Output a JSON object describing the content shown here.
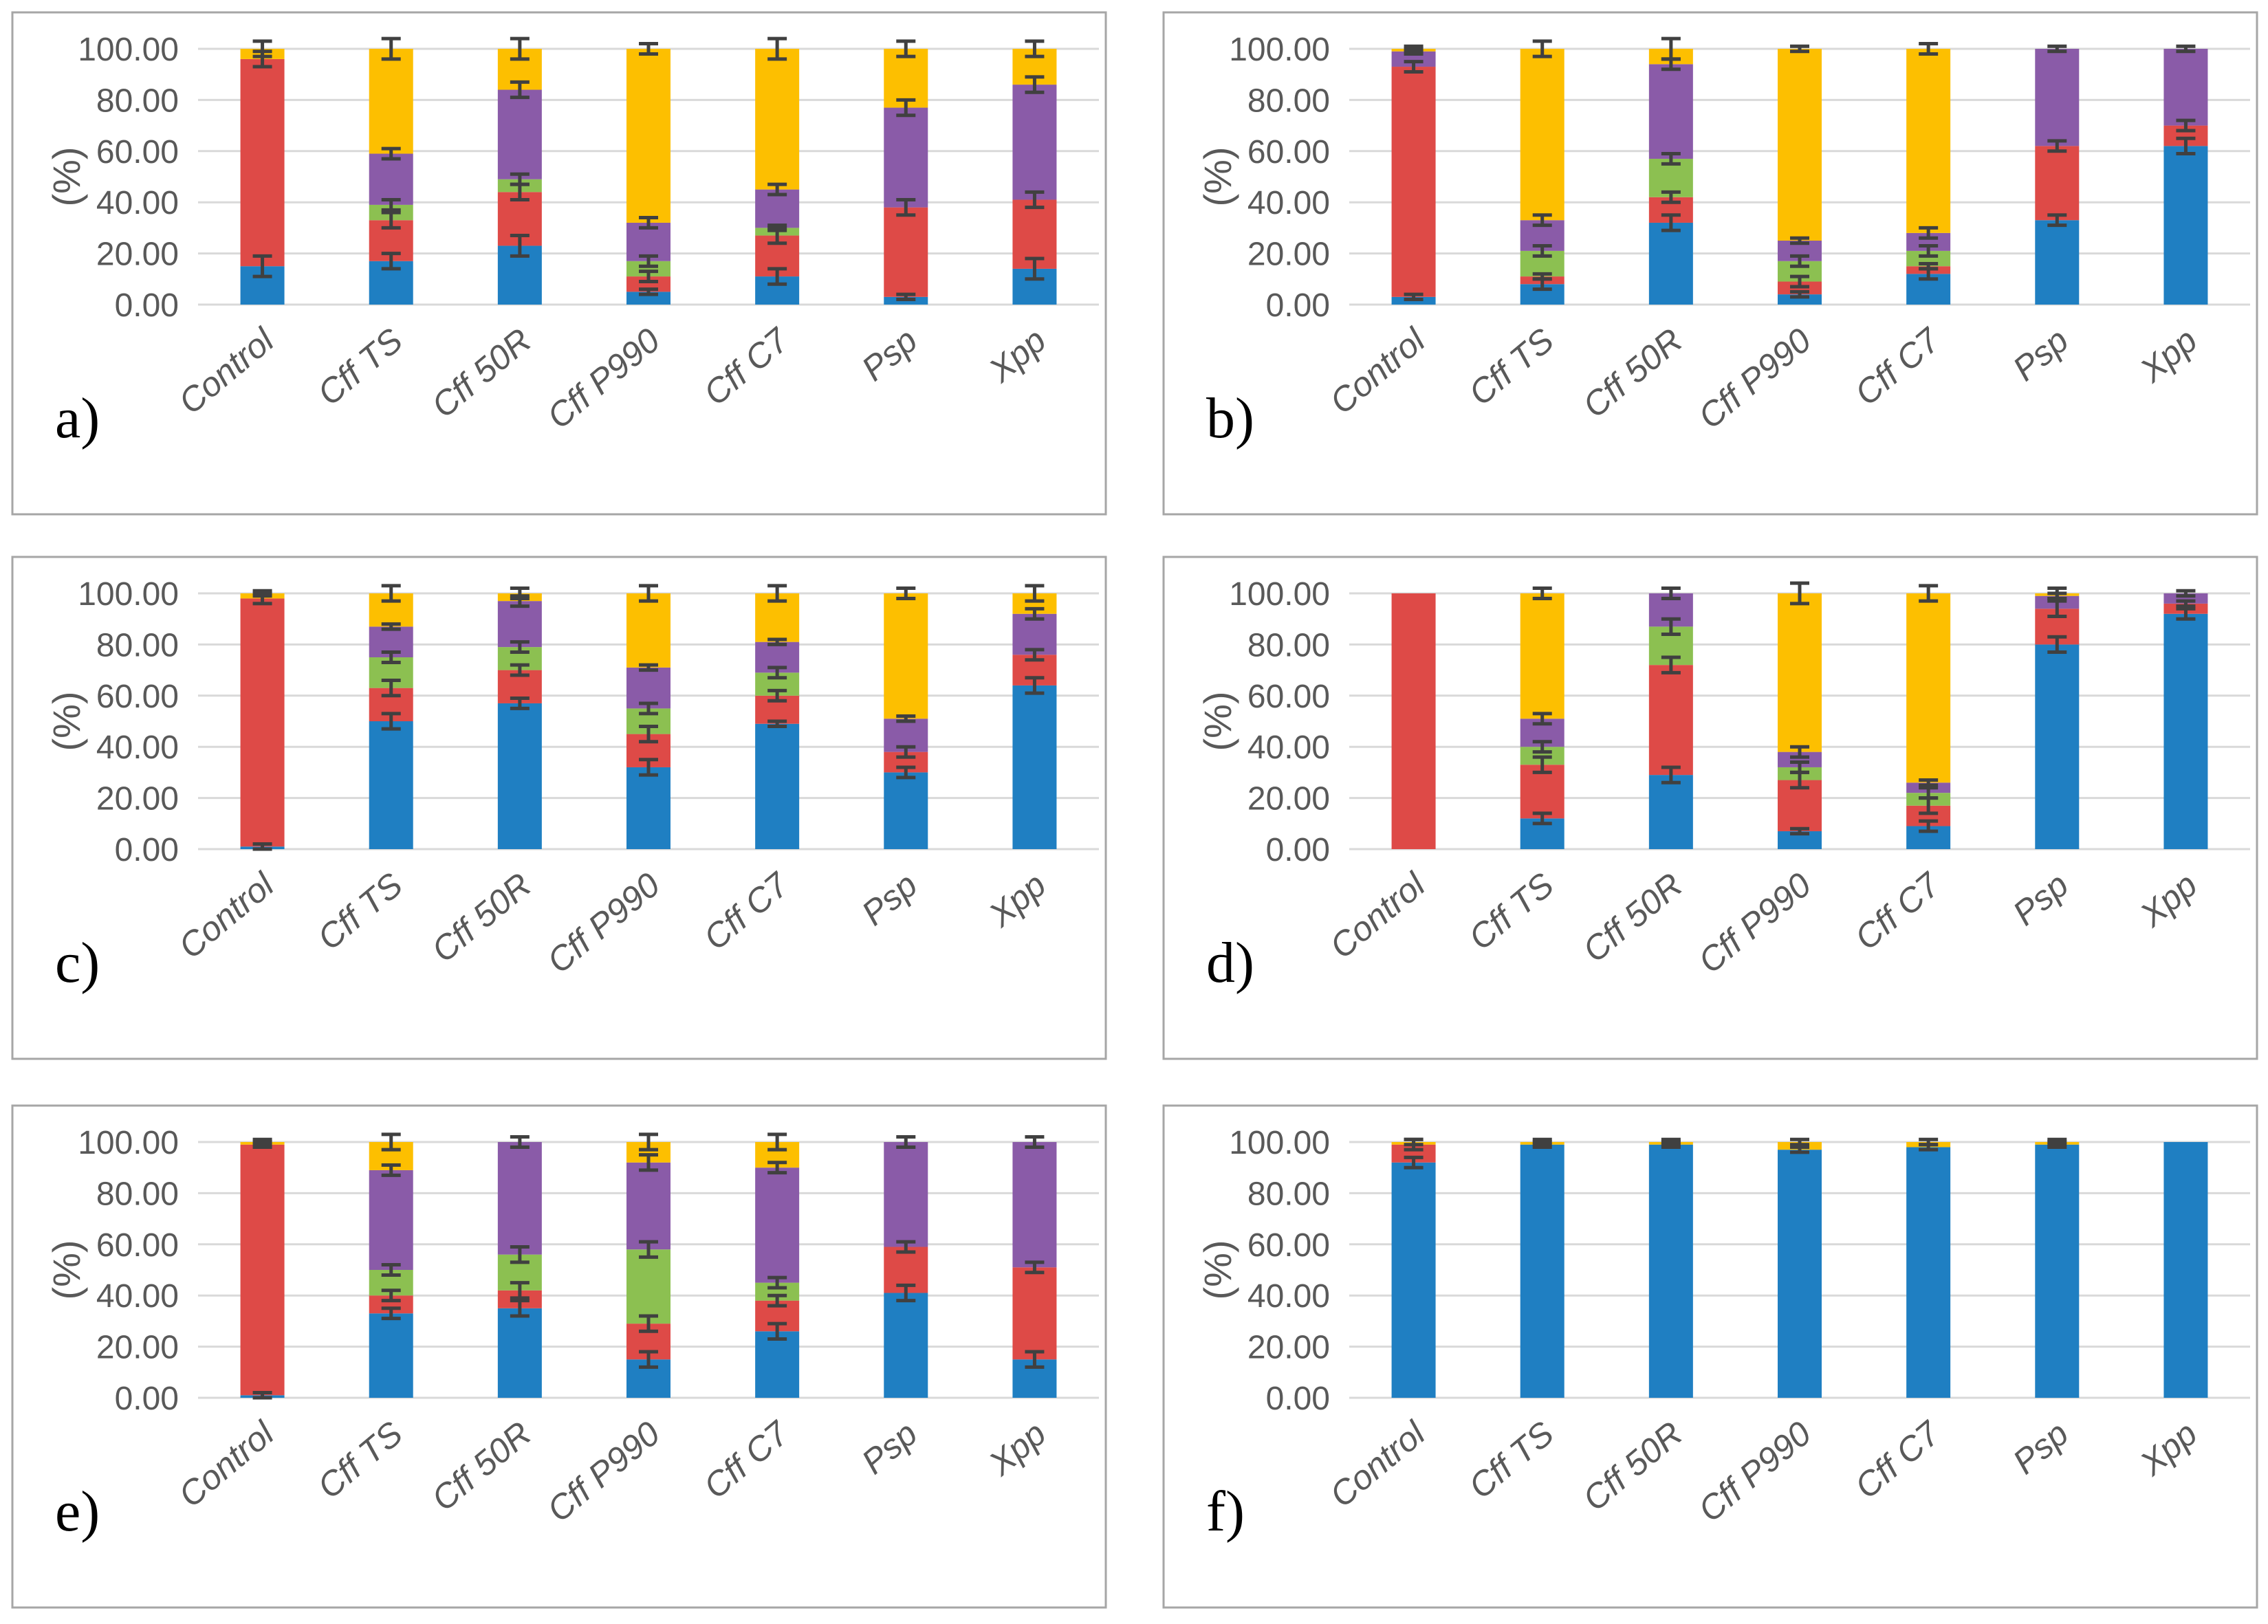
{
  "colors": {
    "blue": "#1f7fc2",
    "red": "#de4a47",
    "green": "#8cc051",
    "purple": "#8a5ba8",
    "yellow": "#fdbf00"
  },
  "y_ticks": [
    "0.00",
    "20.00",
    "40.00",
    "60.00",
    "80.00",
    "100.00"
  ],
  "chart_data": [
    {
      "type": "bar",
      "stacked": true,
      "panel_label": "a)",
      "ylabel": "(%)",
      "ylim": [
        0,
        100
      ],
      "categories": [
        "Control",
        "Cff TS",
        "Cff 50R",
        "Cff P990",
        "Cff C7",
        "Psp",
        "Xpp"
      ],
      "series": [
        {
          "color": "blue",
          "values": [
            15,
            17,
            23,
            5,
            11,
            3,
            14
          ],
          "errors": [
            4,
            3,
            4,
            1,
            3,
            1,
            4
          ]
        },
        {
          "color": "red",
          "values": [
            81,
            16,
            21,
            6,
            16,
            35,
            27
          ],
          "errors": [
            3,
            3,
            3,
            2,
            3,
            3,
            3
          ]
        },
        {
          "color": "green",
          "values": [
            0,
            6,
            5,
            6,
            3,
            0,
            0
          ],
          "errors": [
            0,
            2,
            2,
            2,
            1,
            0,
            0
          ]
        },
        {
          "color": "purple",
          "values": [
            0,
            20,
            35,
            15,
            15,
            39,
            45
          ],
          "errors": [
            0,
            2,
            3,
            2,
            2,
            3,
            3
          ]
        },
        {
          "color": "yellow",
          "values": [
            4,
            41,
            16,
            68,
            55,
            23,
            14
          ],
          "errors": [
            3,
            4,
            4,
            2,
            4,
            3,
            3
          ]
        }
      ]
    },
    {
      "type": "bar",
      "stacked": true,
      "panel_label": "b)",
      "ylabel": "(%)",
      "ylim": [
        0,
        100
      ],
      "categories": [
        "Control",
        "Cff TS",
        "Cff 50R",
        "Cff P990",
        "Cff C7",
        "Psp",
        "Xpp"
      ],
      "series": [
        {
          "color": "blue",
          "values": [
            3,
            8,
            32,
            4,
            12,
            33,
            62
          ],
          "errors": [
            1,
            2,
            3,
            1,
            2,
            2,
            3
          ]
        },
        {
          "color": "red",
          "values": [
            90,
            3,
            10,
            5,
            3,
            29,
            8
          ],
          "errors": [
            2,
            1,
            2,
            2,
            1,
            2,
            2
          ]
        },
        {
          "color": "green",
          "values": [
            0,
            10,
            15,
            8,
            6,
            0,
            0
          ],
          "errors": [
            0,
            2,
            2,
            2,
            2,
            0,
            0
          ]
        },
        {
          "color": "purple",
          "values": [
            6,
            12,
            37,
            8,
            7,
            38,
            30
          ],
          "errors": [
            1,
            2,
            2,
            1,
            2,
            1,
            1
          ]
        },
        {
          "color": "yellow",
          "values": [
            1,
            67,
            6,
            75,
            72,
            0,
            0
          ],
          "errors": [
            1,
            3,
            4,
            1,
            2,
            0,
            2
          ]
        }
      ]
    },
    {
      "type": "bar",
      "stacked": true,
      "panel_label": "c)",
      "ylabel": "(%)",
      "ylim": [
        0,
        100
      ],
      "categories": [
        "Control",
        "Cff TS",
        "Cff 50R",
        "Cff P990",
        "Cff C7",
        "Psp",
        "Xpp"
      ],
      "series": [
        {
          "color": "blue",
          "values": [
            1,
            50,
            57,
            32,
            49,
            30,
            64
          ],
          "errors": [
            1,
            3,
            2,
            3,
            1,
            2,
            3
          ]
        },
        {
          "color": "red",
          "values": [
            97,
            13,
            13,
            13,
            11,
            8,
            12
          ],
          "errors": [
            2,
            3,
            2,
            3,
            2,
            2,
            2
          ]
        },
        {
          "color": "green",
          "values": [
            0,
            12,
            9,
            10,
            9,
            0,
            0
          ],
          "errors": [
            0,
            2,
            2,
            2,
            2,
            0,
            0
          ]
        },
        {
          "color": "purple",
          "values": [
            0,
            12,
            18,
            16,
            12,
            13,
            16
          ],
          "errors": [
            0,
            1,
            2,
            1,
            1,
            1,
            2
          ]
        },
        {
          "color": "yellow",
          "values": [
            2,
            13,
            3,
            29,
            19,
            49,
            8
          ],
          "errors": [
            1,
            3,
            2,
            3,
            3,
            2,
            3
          ]
        }
      ]
    },
    {
      "type": "bar",
      "stacked": true,
      "panel_label": "d)",
      "ylabel": "(%)",
      "ylim": [
        0,
        100
      ],
      "categories": [
        "Control",
        "Cff TS",
        "Cff 50R",
        "Cff P990",
        "Cff C7",
        "Psp",
        "Xpp"
      ],
      "series": [
        {
          "color": "blue",
          "values": [
            0,
            12,
            29,
            7,
            9,
            80,
            92
          ],
          "errors": [
            1,
            2,
            3,
            1,
            2,
            3,
            2
          ]
        },
        {
          "color": "red",
          "values": [
            100,
            21,
            43,
            20,
            8,
            14,
            4
          ],
          "errors": [
            0,
            3,
            3,
            3,
            3,
            3,
            1
          ]
        },
        {
          "color": "green",
          "values": [
            0,
            7,
            15,
            5,
            5,
            0,
            0
          ],
          "errors": [
            0,
            2,
            3,
            2,
            2,
            0,
            0
          ]
        },
        {
          "color": "purple",
          "values": [
            0,
            11,
            13,
            6,
            4,
            5,
            4
          ],
          "errors": [
            0,
            2,
            2,
            2,
            1,
            1,
            1
          ]
        },
        {
          "color": "yellow",
          "values": [
            0,
            49,
            0,
            62,
            74,
            1,
            0
          ],
          "errors": [
            0,
            2,
            3,
            4,
            3,
            2,
            2
          ]
        }
      ]
    },
    {
      "type": "bar",
      "stacked": true,
      "panel_label": "e)",
      "ylabel": "(%)",
      "ylim": [
        0,
        100
      ],
      "categories": [
        "Control",
        "Cff TS",
        "Cff 50R",
        "Cff P990",
        "Cff C7",
        "Psp",
        "Xpp"
      ],
      "series": [
        {
          "color": "blue",
          "values": [
            1,
            33,
            35,
            15,
            26,
            41,
            15
          ],
          "errors": [
            1,
            2,
            3,
            3,
            3,
            3,
            3
          ]
        },
        {
          "color": "red",
          "values": [
            98,
            7,
            7,
            14,
            12,
            18,
            36
          ],
          "errors": [
            1,
            2,
            3,
            3,
            2,
            2,
            2
          ]
        },
        {
          "color": "green",
          "values": [
            0,
            10,
            14,
            29,
            7,
            0,
            0
          ],
          "errors": [
            0,
            2,
            3,
            3,
            2,
            0,
            0
          ]
        },
        {
          "color": "purple",
          "values": [
            0,
            39,
            44,
            34,
            45,
            41,
            49
          ],
          "errors": [
            0,
            2,
            2,
            3,
            2,
            2,
            2
          ]
        },
        {
          "color": "yellow",
          "values": [
            1,
            11,
            0,
            8,
            10,
            0,
            0
          ],
          "errors": [
            1,
            3,
            2,
            3,
            3,
            3,
            3
          ]
        }
      ]
    },
    {
      "type": "bar",
      "stacked": true,
      "panel_label": "f)",
      "ylabel": "(%)",
      "ylim": [
        0,
        100
      ],
      "categories": [
        "Control",
        "Cff TS",
        "Cff 50R",
        "Cff P990",
        "Cff C7",
        "Psp",
        "Xpp"
      ],
      "series": [
        {
          "color": "blue",
          "values": [
            92,
            99,
            99,
            97,
            98,
            99,
            100
          ],
          "errors": [
            2,
            1,
            1,
            1,
            1,
            1,
            0
          ]
        },
        {
          "color": "red",
          "values": [
            7,
            0,
            0,
            0,
            0,
            0,
            0
          ],
          "errors": [
            2,
            0,
            0,
            0,
            0,
            0,
            0
          ]
        },
        {
          "color": "green",
          "values": [
            0,
            0,
            0,
            0,
            0,
            0,
            0
          ],
          "errors": [
            0,
            0,
            0,
            0,
            0,
            0,
            0
          ]
        },
        {
          "color": "purple",
          "values": [
            0,
            0,
            0,
            0,
            0,
            0,
            0
          ],
          "errors": [
            0,
            0,
            0,
            0,
            0,
            0,
            0
          ]
        },
        {
          "color": "yellow",
          "values": [
            1,
            1,
            1,
            3,
            2,
            1,
            0
          ],
          "errors": [
            1,
            1,
            1,
            1,
            1,
            1,
            1
          ]
        }
      ]
    }
  ]
}
